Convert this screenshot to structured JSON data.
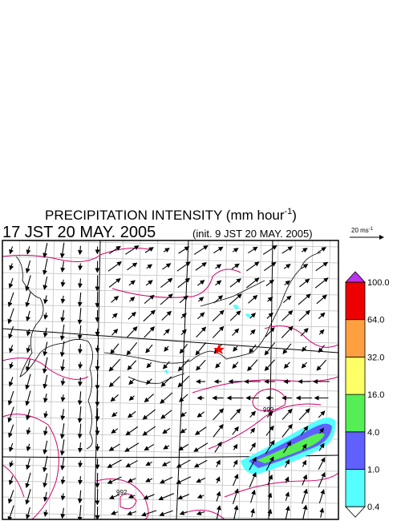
{
  "header": {
    "title": {
      "text": "PRECIPITATION INTENSITY (mm hour",
      "sup": "-1",
      "end": ")"
    },
    "valid_time": "17 JST 20 MAY. 2005",
    "init_time": "(init. 9 JST 20 MAY. 2005)"
  },
  "wind_scale": {
    "text": "20 ms",
    "sup": "-1"
  },
  "map": {
    "isobar_labels": [
      "992",
      "992"
    ]
  },
  "colorbar": {
    "labels": [
      "0.4",
      "1.0",
      "4.0",
      "16.0",
      "32.0",
      "64.0",
      "100.0"
    ],
    "colors": [
      "#55ffff",
      "#6060ff",
      "#55ee55",
      "#ffff66",
      "#ffa040",
      "#ee0000"
    ],
    "over_color": "#bb33ee",
    "under_color": "#ffffff"
  }
}
